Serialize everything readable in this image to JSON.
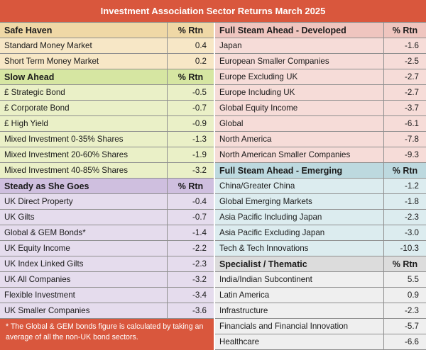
{
  "title": "Investment Association Sector Returns March 2025",
  "left": {
    "safe_haven": {
      "header": "Safe Haven",
      "header_unit": "% Rtn",
      "rows": [
        {
          "name": "Standard Money Market",
          "value": "0.4"
        },
        {
          "name": "Short Term Money Market",
          "value": "0.2"
        }
      ]
    },
    "slow_ahead": {
      "header": "Slow Ahead",
      "header_unit": "% Rtn",
      "rows": [
        {
          "name": "£ Strategic Bond",
          "value": "-0.5"
        },
        {
          "name": "£ Corporate Bond",
          "value": "-0.7"
        },
        {
          "name": "£ High Yield",
          "value": "-0.9"
        },
        {
          "name": "Mixed Investment 0-35% Shares",
          "value": "-1.3"
        },
        {
          "name": "Mixed Investment 20-60% Shares",
          "value": "-1.9"
        },
        {
          "name": "Mixed Investment 40-85% Shares",
          "value": "-3.2"
        }
      ]
    },
    "steady": {
      "header": "Steady as She Goes",
      "header_unit": "% Rtn",
      "rows": [
        {
          "name": "UK Direct Property",
          "value": "-0.4"
        },
        {
          "name": "UK Gilts",
          "value": "-0.7"
        },
        {
          "name": "Global & GEM Bonds*",
          "value": "-1.4"
        },
        {
          "name": "UK Equity Income",
          "value": "-2.2"
        },
        {
          "name": "UK Index Linked Gilts",
          "value": "-2.3"
        },
        {
          "name": "UK All Companies",
          "value": "-3.2"
        },
        {
          "name": "Flexible Investment",
          "value": "-3.4"
        },
        {
          "name": "UK Smaller Companies",
          "value": "-3.6"
        }
      ]
    },
    "footnote": "* The Global & GEM bonds figure is calculated by taking an average of all the non-UK bond sectors."
  },
  "right": {
    "developed": {
      "header": "Full Steam Ahead - Developed",
      "header_unit": "% Rtn",
      "rows": [
        {
          "name": "Japan",
          "value": "-1.6"
        },
        {
          "name": "European Smaller Companies",
          "value": "-2.5"
        },
        {
          "name": "Europe Excluding UK",
          "value": "-2.7"
        },
        {
          "name": "Europe Including UK",
          "value": "-2.7"
        },
        {
          "name": "Global Equity Income",
          "value": "-3.7"
        },
        {
          "name": "Global",
          "value": "-6.1"
        },
        {
          "name": "North America",
          "value": "-7.8"
        },
        {
          "name": "North American Smaller Companies",
          "value": "-9.3"
        }
      ]
    },
    "emerging": {
      "header": "Full Steam Ahead - Emerging",
      "header_unit": "% Rtn",
      "rows": [
        {
          "name": "China/Greater China",
          "value": "-1.2"
        },
        {
          "name": "Global Emerging Markets",
          "value": "-1.8"
        },
        {
          "name": "Asia Pacific Including Japan",
          "value": "-2.3"
        },
        {
          "name": "Asia Pacific Excluding Japan",
          "value": "-3.0"
        },
        {
          "name": "Tech & Tech Innovations",
          "value": "-10.3"
        }
      ]
    },
    "specialist": {
      "header": "Specialist / Thematic",
      "header_unit": "% Rtn",
      "rows": [
        {
          "name": "India/Indian Subcontinent",
          "value": "5.5"
        },
        {
          "name": "Latin America",
          "value": "0.9"
        },
        {
          "name": "Infrastructure",
          "value": "-2.3"
        },
        {
          "name": "Financials and Financial Innovation",
          "value": "-5.7"
        },
        {
          "name": "Healthcare",
          "value": "-6.6"
        }
      ]
    }
  }
}
